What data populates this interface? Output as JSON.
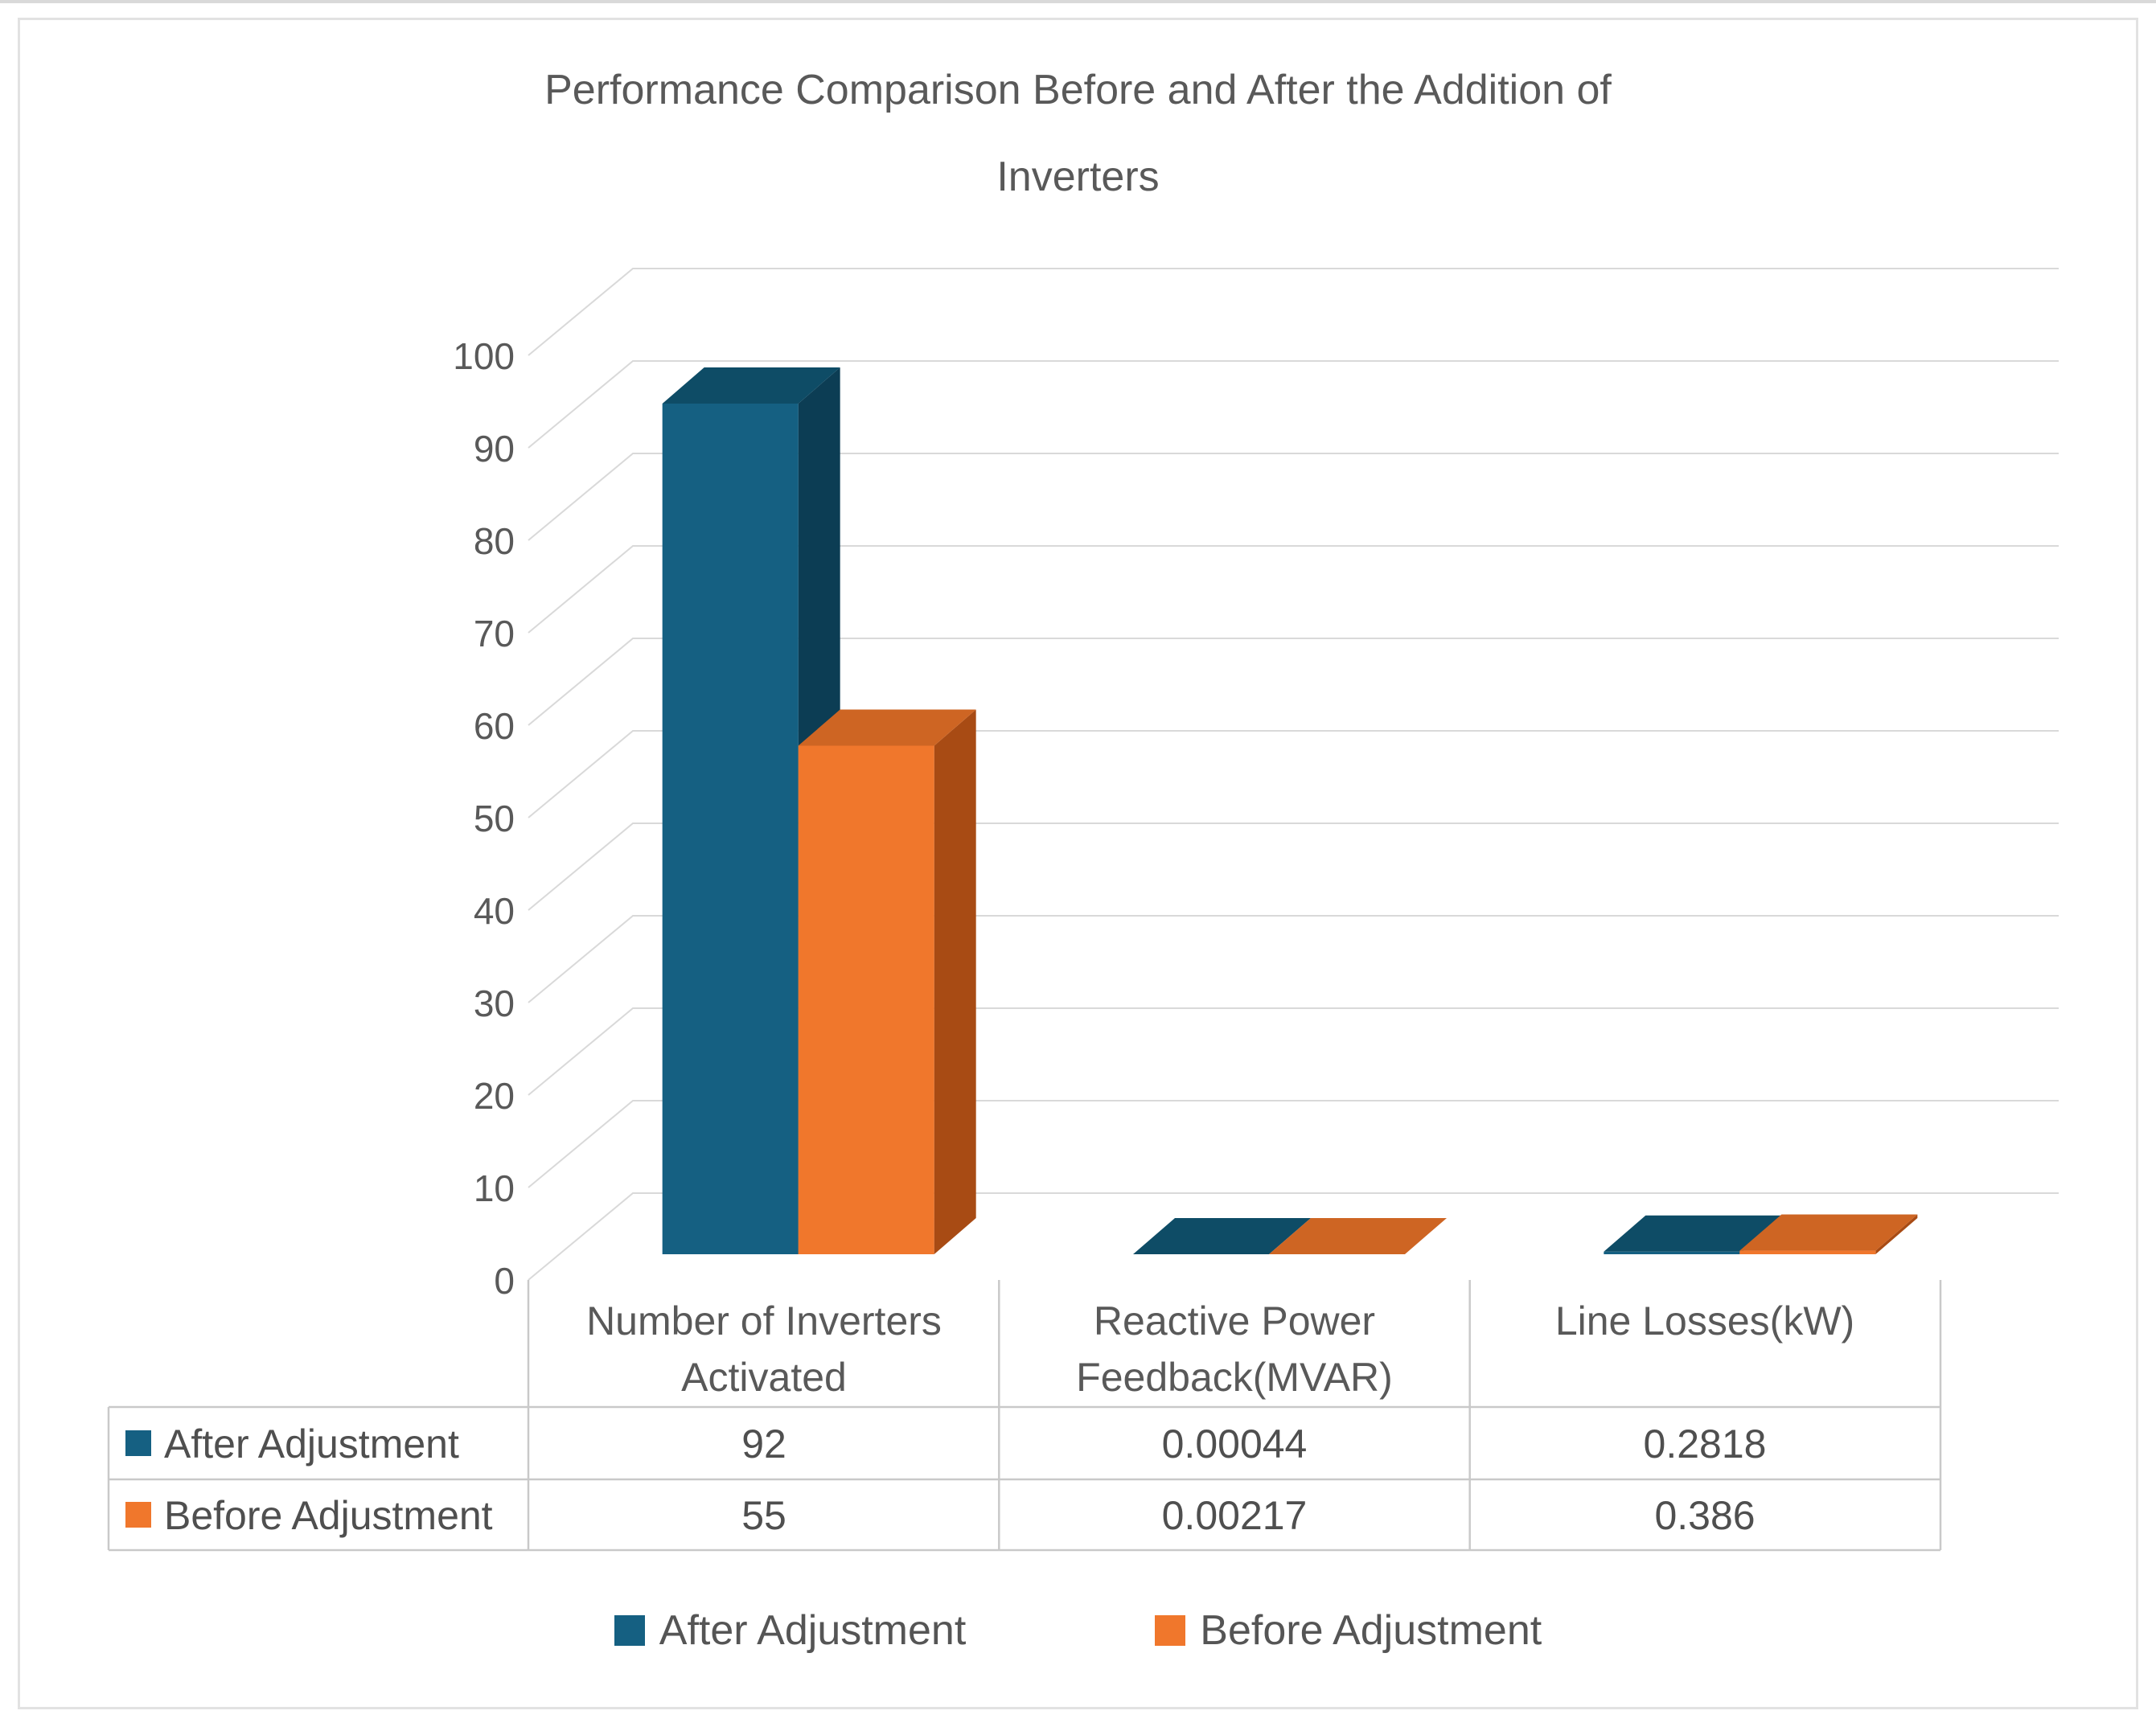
{
  "title": {
    "lines": [
      "Performance Comparison Before and After the Addition of",
      "Inverters"
    ]
  },
  "chart_data": {
    "type": "bar",
    "style": "3d-clustered-column",
    "title": "Performance Comparison Before and After the Addition of Inverters",
    "categories": [
      "Number of Inverters Activated",
      "Reactive Power Feedback(MVAR)",
      "Line Losses(kW)"
    ],
    "series": [
      {
        "name": "After Adjustment",
        "values": [
          92,
          0.00044,
          0.2818
        ],
        "display_values": [
          "92",
          "0.00044",
          "0.2818"
        ],
        "colors": {
          "front": "#156082",
          "top": "#0E4C66",
          "side": "#0C3D54"
        }
      },
      {
        "name": "Before Adjustment",
        "values": [
          55,
          0.00217,
          0.386
        ],
        "display_values": [
          "55",
          "0.00217",
          "0.386"
        ],
        "colors": {
          "front": "#F0772C",
          "top": "#CE6523",
          "side": "#A84B14"
        }
      }
    ],
    "ylim": [
      0,
      100
    ],
    "ytick_step": 10,
    "ytick_labels": [
      "0",
      "10",
      "20",
      "30",
      "40",
      "50",
      "60",
      "70",
      "80",
      "90",
      "100"
    ],
    "grid": true,
    "gridline_color": "#D9D9D9",
    "legend_position": "bottom",
    "has_data_table": true
  },
  "category_labels": [
    {
      "lines": [
        "Number of Inverters",
        "Activated"
      ]
    },
    {
      "lines": [
        "Reactive Power",
        "Feedback(MVAR)"
      ]
    },
    {
      "lines": [
        "Line Losses(kW)",
        ""
      ]
    }
  ],
  "legend": {
    "items": [
      {
        "label": "After Adjustment"
      },
      {
        "label": "Before Adjustment"
      }
    ]
  }
}
